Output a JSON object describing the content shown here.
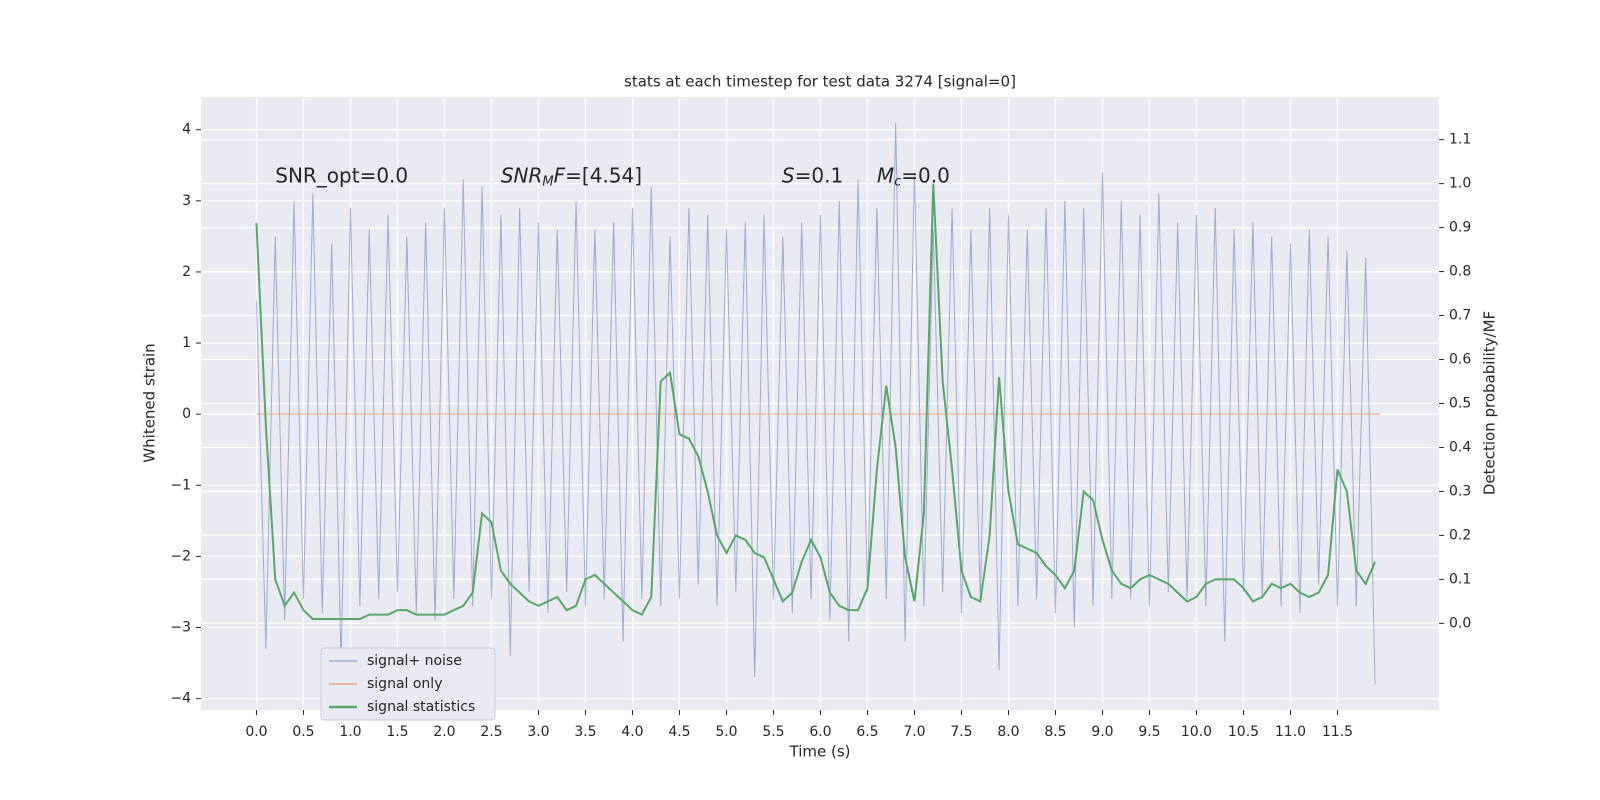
{
  "chart_data": {
    "type": "line",
    "title": "stats at each timestep for test data 3274 [signal=0]",
    "x_label": "Time (s)",
    "y_label": "Whitened strain",
    "y2_label": "Detection probability/MF",
    "xlim": [
      -0.59,
      12.58
    ],
    "ylim": [
      -4.16,
      4.46
    ],
    "y2lim": [
      -0.197,
      1.197
    ],
    "xticks": [
      {
        "value": 0,
        "label": "0.0"
      },
      0.5,
      {
        "value": 1,
        "label": "1.0"
      },
      1.5,
      {
        "value": 2,
        "label": "2.0"
      },
      2.5,
      {
        "value": 3,
        "label": "3.0"
      },
      3.5,
      {
        "value": 4,
        "label": "4.0"
      },
      4.5,
      {
        "value": 5,
        "label": "5.0"
      },
      5.5,
      {
        "value": 6,
        "label": "6.0"
      },
      6.5,
      {
        "value": 7,
        "label": "7.0"
      },
      7.5,
      {
        "value": 8,
        "label": "8.0"
      },
      8.5,
      {
        "value": 9,
        "label": "9.0"
      },
      9.5,
      {
        "value": 10,
        "label": "10.0"
      },
      10.5,
      {
        "value": 11,
        "label": "11.0"
      },
      11.5
    ],
    "yticks": [
      {
        "value": -4,
        "label": "−4"
      },
      {
        "value": -3,
        "label": "−3"
      },
      {
        "value": -2,
        "label": "−2"
      },
      {
        "value": -1,
        "label": "−1"
      },
      0,
      1,
      2,
      3,
      4
    ],
    "y2ticks": [
      {
        "value": 0,
        "label": "0.0"
      },
      0.1,
      0.2,
      0.3,
      0.4,
      0.5,
      0.6,
      0.7,
      0.8,
      0.9,
      {
        "value": 1,
        "label": "1.0"
      },
      1.1
    ],
    "grid": true,
    "legend": "lower left",
    "x": [
      0.0,
      0.1,
      0.2,
      0.3,
      0.4,
      0.5,
      0.6,
      0.7,
      0.8,
      0.9,
      1.0,
      1.1,
      1.2,
      1.3,
      1.4,
      1.5,
      1.6,
      1.7,
      1.8,
      1.9,
      2.0,
      2.1,
      2.2,
      2.3,
      2.4,
      2.5,
      2.6,
      2.7,
      2.8,
      2.9,
      3.0,
      3.1,
      3.2,
      3.3,
      3.4,
      3.5,
      3.6,
      3.7,
      3.8,
      3.9,
      4.0,
      4.1,
      4.2,
      4.3,
      4.4,
      4.5,
      4.6,
      4.7,
      4.8,
      4.9,
      5.0,
      5.1,
      5.2,
      5.3,
      5.4,
      5.5,
      5.6,
      5.7,
      5.8,
      5.9,
      6.0,
      6.1,
      6.2,
      6.3,
      6.4,
      6.5,
      6.6,
      6.7,
      6.8,
      6.9,
      7.0,
      7.1,
      7.2,
      7.3,
      7.4,
      7.5,
      7.6,
      7.7,
      7.8,
      7.9,
      8.0,
      8.1,
      8.2,
      8.3,
      8.4,
      8.5,
      8.6,
      8.7,
      8.8,
      8.9,
      9.0,
      9.1,
      9.2,
      9.3,
      9.4,
      9.5,
      9.6,
      9.7,
      9.8,
      9.9,
      10.0,
      10.1,
      10.2,
      10.3,
      10.4,
      10.5,
      10.6,
      10.7,
      10.8,
      10.9,
      11.0,
      11.1,
      11.2,
      11.3,
      11.4,
      11.5,
      11.6,
      11.7,
      11.8,
      11.9
    ],
    "series": [
      {
        "name": "signal+ noise",
        "color": "#4c72b0",
        "values": [
          1.6,
          -3.3,
          2.5,
          -2.9,
          3.0,
          -2.6,
          3.1,
          -2.8,
          2.4,
          -3.5,
          2.9,
          -2.7,
          2.6,
          -2.6,
          2.8,
          -2.5,
          2.5,
          -2.8,
          2.7,
          -2.9,
          2.9,
          -2.6,
          3.3,
          -2.7,
          3.2,
          -2.6,
          2.8,
          -3.4,
          2.9,
          -2.5,
          2.7,
          -2.8,
          2.6,
          -2.5,
          3.0,
          -2.7,
          2.6,
          -2.6,
          2.7,
          -3.2,
          2.9,
          -2.6,
          3.2,
          -2.7,
          2.5,
          -2.6,
          2.9,
          -2.4,
          2.8,
          -2.7,
          2.6,
          -2.5,
          2.7,
          -3.7,
          2.8,
          -2.6,
          2.5,
          -2.8,
          2.7,
          -2.6,
          2.8,
          -2.9,
          3.0,
          -3.2,
          3.3,
          -2.5,
          2.9,
          -2.6,
          4.1,
          -3.2,
          3.4,
          -2.7,
          2.6,
          -2.5,
          2.9,
          -2.8,
          2.6,
          -2.6,
          2.9,
          -3.6,
          2.8,
          -2.7,
          2.6,
          -2.6,
          2.9,
          -2.8,
          3.0,
          -3.0,
          2.9,
          -2.7,
          3.4,
          -2.6,
          3.0,
          -2.6,
          2.8,
          -2.7,
          3.1,
          -2.5,
          2.7,
          -2.6,
          2.8,
          -2.7,
          2.9,
          -3.2,
          2.6,
          -2.5,
          2.7,
          -2.6,
          2.5,
          -2.7,
          2.4,
          -2.8,
          2.6,
          -2.4,
          2.5,
          -2.7,
          2.3,
          -2.7,
          2.2,
          -3.8
        ]
      },
      {
        "name": "signal only",
        "color": "#dd8452",
        "x": [
          0.0,
          11.95
        ],
        "values": [
          0,
          0
        ]
      },
      {
        "name": "signal statistics",
        "color": "#55a868",
        "axis": "y2",
        "values": [
          0.91,
          0.45,
          0.1,
          0.04,
          0.07,
          0.03,
          0.01,
          0.01,
          0.01,
          0.01,
          0.01,
          0.01,
          0.02,
          0.02,
          0.02,
          0.03,
          0.03,
          0.02,
          0.02,
          0.02,
          0.02,
          0.03,
          0.04,
          0.07,
          0.25,
          0.23,
          0.12,
          0.09,
          0.07,
          0.05,
          0.04,
          0.05,
          0.06,
          0.03,
          0.04,
          0.1,
          0.11,
          0.09,
          0.07,
          0.05,
          0.03,
          0.02,
          0.06,
          0.55,
          0.57,
          0.43,
          0.42,
          0.38,
          0.3,
          0.2,
          0.16,
          0.2,
          0.19,
          0.16,
          0.15,
          0.1,
          0.05,
          0.07,
          0.14,
          0.19,
          0.15,
          0.07,
          0.04,
          0.03,
          0.03,
          0.08,
          0.35,
          0.54,
          0.4,
          0.15,
          0.05,
          0.25,
          1.0,
          0.55,
          0.35,
          0.12,
          0.06,
          0.05,
          0.2,
          0.56,
          0.3,
          0.18,
          0.17,
          0.16,
          0.13,
          0.11,
          0.08,
          0.12,
          0.3,
          0.28,
          0.19,
          0.12,
          0.09,
          0.08,
          0.1,
          0.11,
          0.1,
          0.09,
          0.07,
          0.05,
          0.06,
          0.09,
          0.1,
          0.1,
          0.1,
          0.08,
          0.05,
          0.06,
          0.09,
          0.08,
          0.09,
          0.07,
          0.06,
          0.07,
          0.11,
          0.35,
          0.3,
          0.12,
          0.09,
          0.14
        ]
      }
    ],
    "annotations": [
      {
        "parts": [
          {
            "text": "SNR_opt=0.0"
          }
        ]
      },
      {
        "parts": [
          {
            "text": "SNR",
            "style": "italic"
          },
          {
            "text": "M",
            "style": "sub"
          },
          {
            "text": "F",
            "style": "italic"
          },
          {
            "text": "=[4.54]"
          }
        ]
      },
      {
        "parts": [
          {
            "text": "S",
            "style": "italic"
          },
          {
            "text": "=0.1"
          }
        ]
      },
      {
        "parts": [
          {
            "text": "M",
            "style": "italic"
          },
          {
            "text": "c",
            "style": "sub"
          },
          {
            "text": "=0.0"
          }
        ]
      }
    ]
  }
}
